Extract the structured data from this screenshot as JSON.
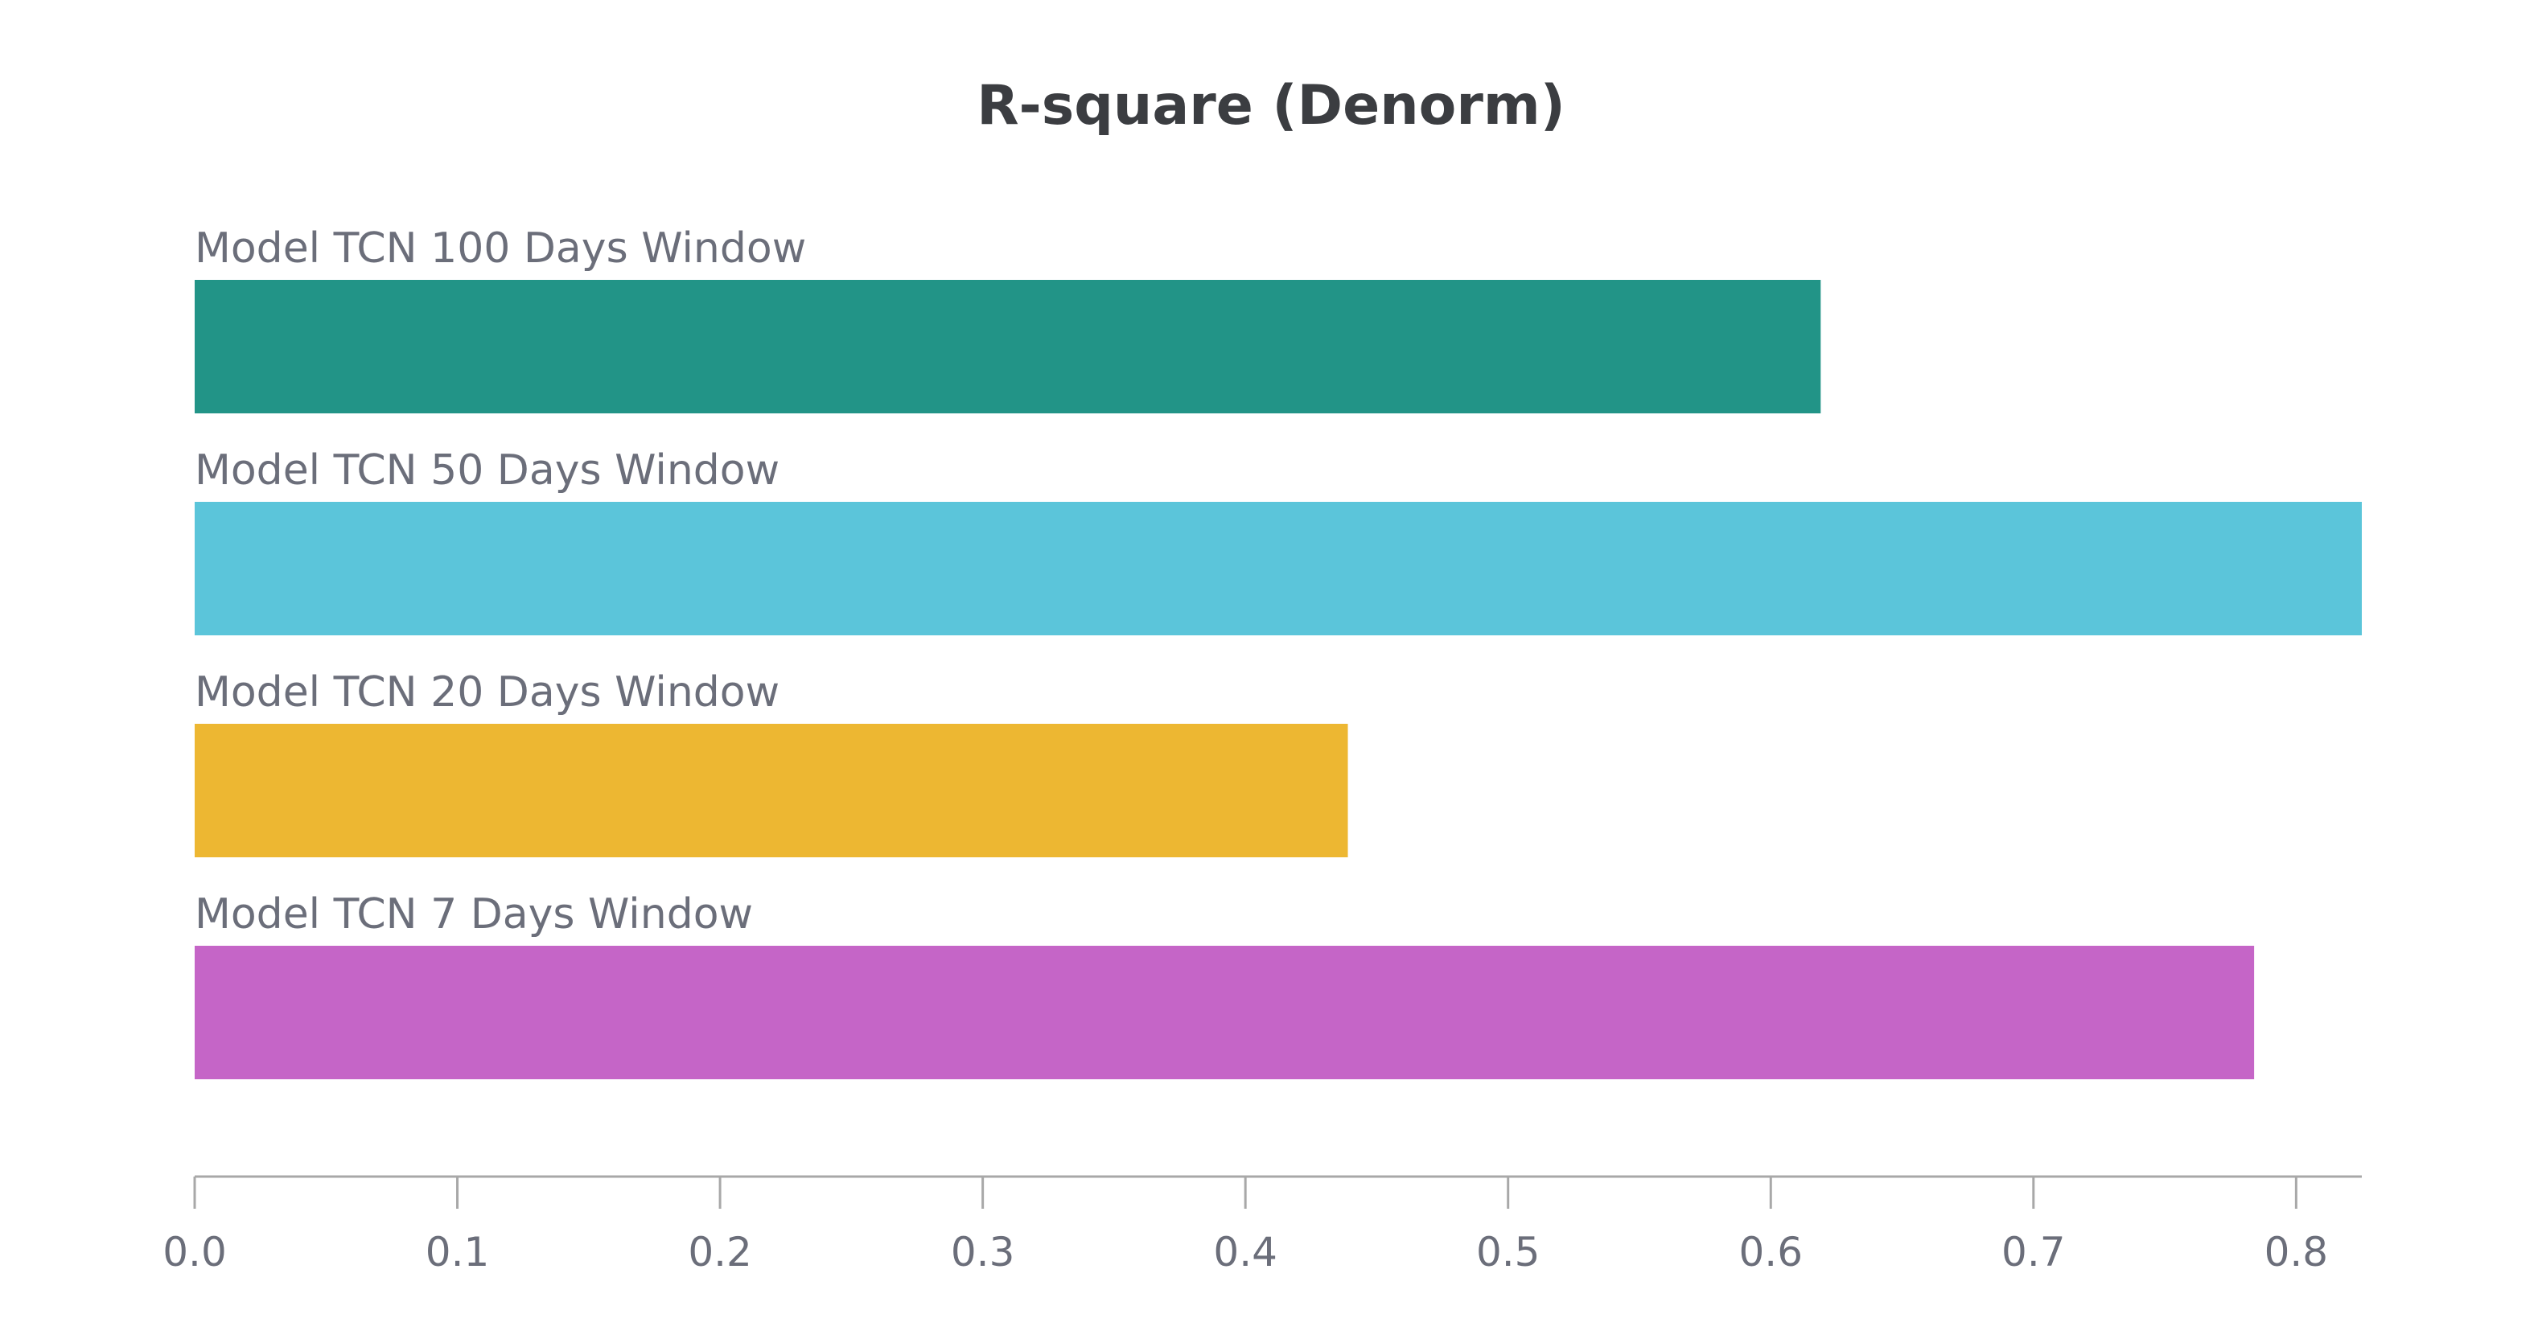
{
  "chart_data": {
    "type": "bar",
    "orientation": "horizontal",
    "title": "R-square (Denorm)",
    "xlabel": "",
    "ylabel": "",
    "xlim": [
      0,
      0.825
    ],
    "ticks": [
      0.0,
      0.1,
      0.2,
      0.3,
      0.4,
      0.5,
      0.6,
      0.7,
      0.8
    ],
    "tick_labels": [
      "0.0",
      "0.1",
      "0.2",
      "0.3",
      "0.4",
      "0.5",
      "0.6",
      "0.7",
      "0.8"
    ],
    "grid": false,
    "categories": [
      "Model TCN 100 Days Window",
      "Model TCN 50 Days Window",
      "Model TCN 20 Days Window",
      "Model TCN 7 Days Window"
    ],
    "values": [
      0.619,
      0.825,
      0.439,
      0.784
    ],
    "colors": [
      "#229487",
      "#5bc5da",
      "#edb732",
      "#c565c7"
    ]
  }
}
